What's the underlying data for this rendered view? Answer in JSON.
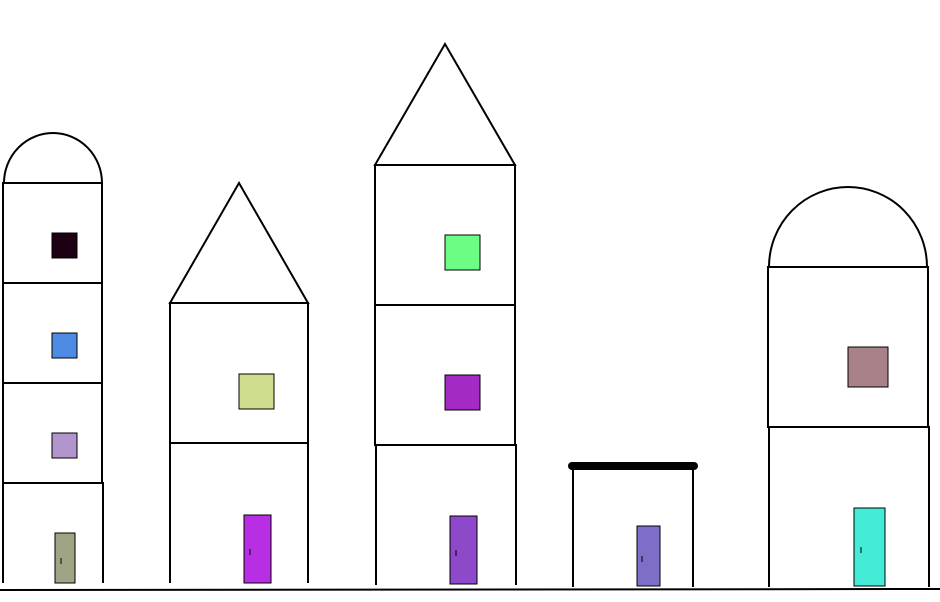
{
  "scene": {
    "background": "#ffffff",
    "line_color": "#000000"
  },
  "buildings": [
    {
      "roof": "dome",
      "floors": 4,
      "windows": [
        "#1e0014",
        "#4e8be4",
        "#b295cc"
      ],
      "door": "#a0a484"
    },
    {
      "roof": "triangle",
      "floors": 2,
      "windows": [
        "#cfde8e"
      ],
      "door": "#b82ee4"
    },
    {
      "roof": "triangle",
      "floors": 3,
      "windows": [
        "#6cfe84",
        "#a42ac6"
      ],
      "door": "#8e48ca"
    },
    {
      "roof": "flat-bar",
      "floors": 1,
      "windows": [],
      "door": "#7e6ec8"
    },
    {
      "roof": "dome",
      "floors": 2,
      "windows": [
        "#a88288"
      ],
      "door": "#44ecd8"
    }
  ]
}
